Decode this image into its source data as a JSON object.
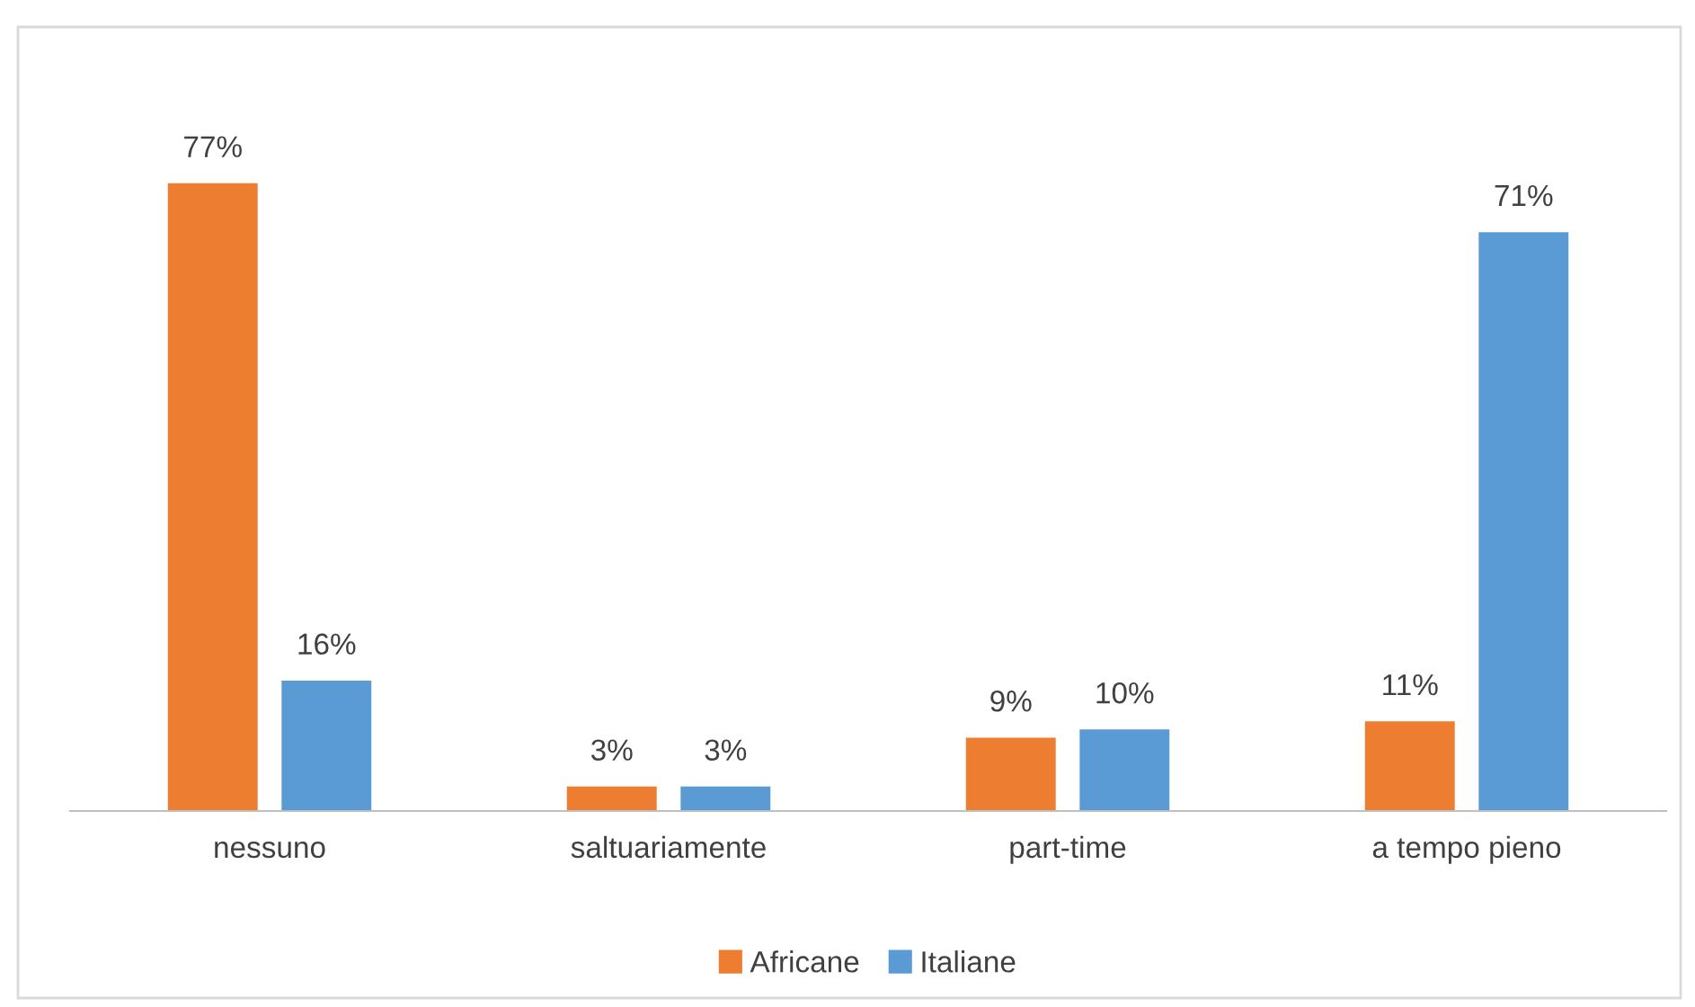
{
  "chart_data": {
    "type": "bar",
    "categories": [
      "nessuno",
      "saltuariamente",
      "part-time",
      "a tempo pieno"
    ],
    "series": [
      {
        "name": "Africane",
        "color": "#ed7d31",
        "values": [
          77,
          3,
          9,
          11
        ],
        "value_labels": [
          "77%",
          "3%",
          "9%",
          "11%"
        ]
      },
      {
        "name": "Italiane",
        "color": "#5b9bd5",
        "values": [
          16,
          3,
          10,
          71
        ],
        "value_labels": [
          "16%",
          "3%",
          "10%",
          "71%"
        ]
      }
    ],
    "grid": false,
    "legend": "bottom"
  }
}
